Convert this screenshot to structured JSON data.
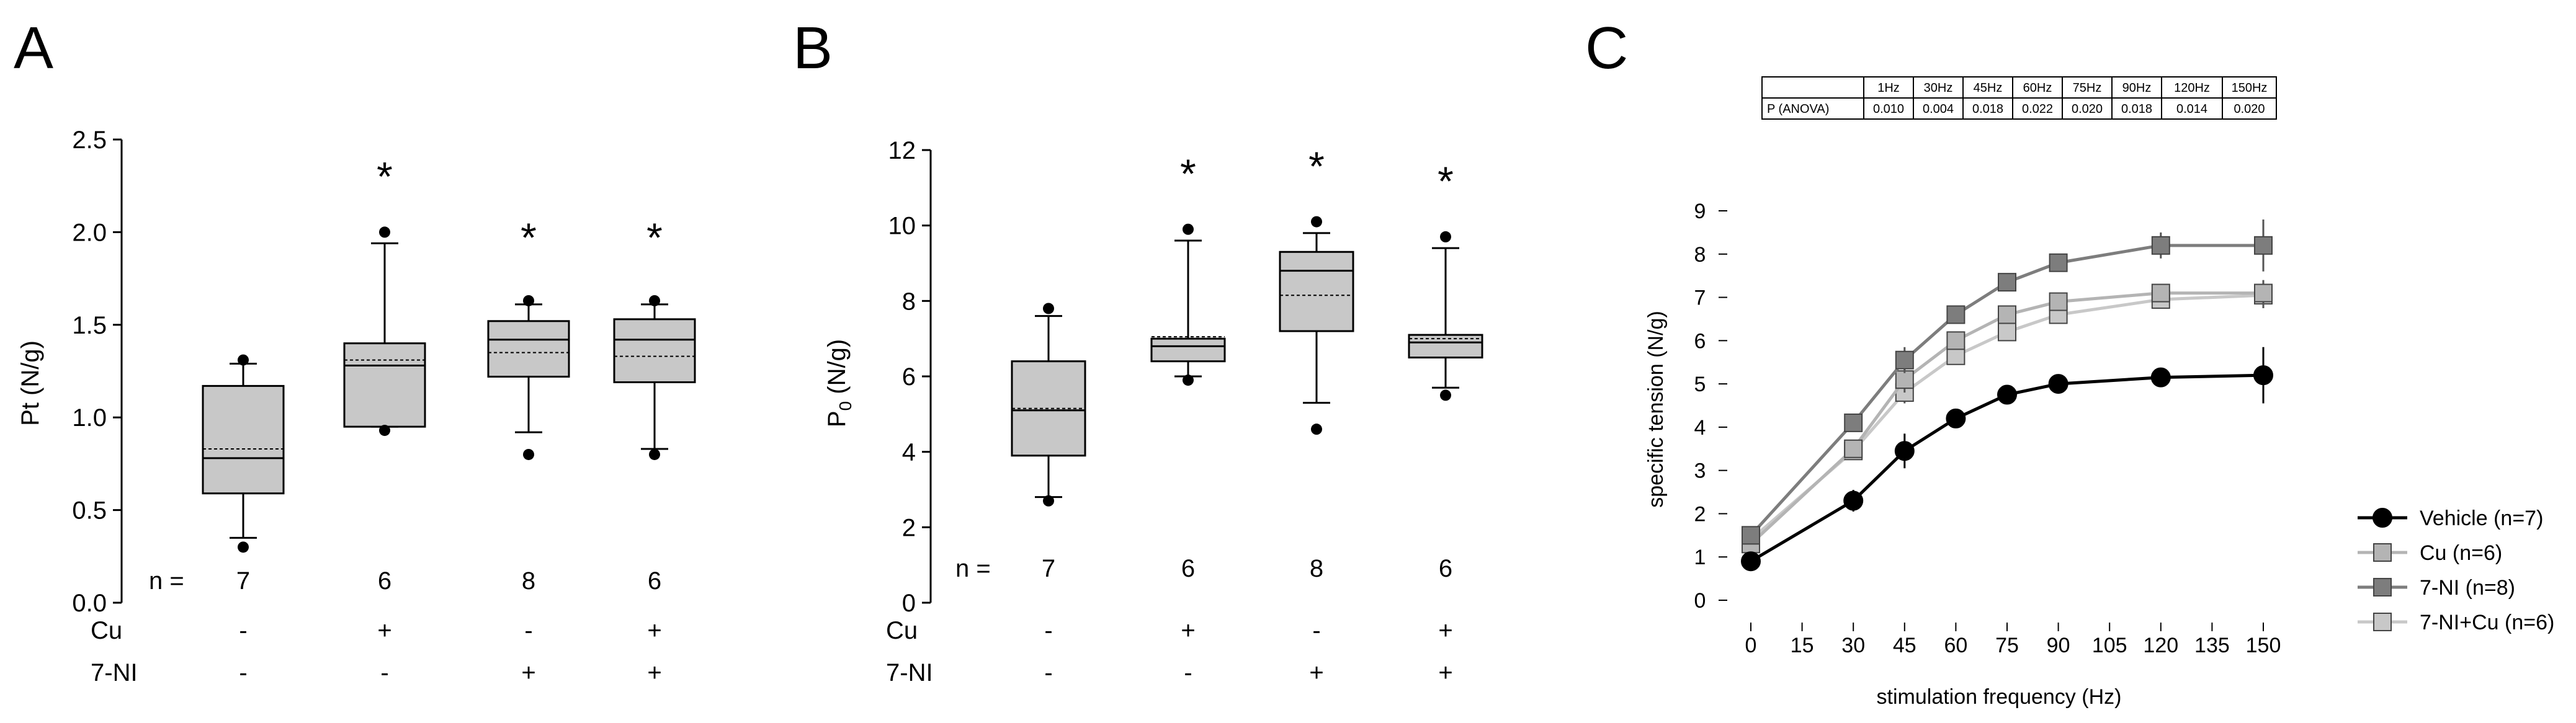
{
  "panels": {
    "a": {
      "letter": "A"
    },
    "b": {
      "letter": "B"
    },
    "c": {
      "letter": "C"
    }
  },
  "chart_data": [
    {
      "type": "box",
      "panel": "A",
      "ylabel": "Pt (N/g)",
      "ylim": [
        0,
        2.5
      ],
      "yticks": [
        "0.0",
        "0.5",
        "1.0",
        "1.5",
        "2.0",
        "2.5"
      ],
      "n_label": "n =",
      "cond_rows": [
        {
          "label": "Cu",
          "values": [
            "-",
            "+",
            "-",
            "+"
          ]
        },
        {
          "label": "7-NI",
          "values": [
            "-",
            "-",
            "+",
            "+"
          ]
        }
      ],
      "groups": [
        {
          "n": "7",
          "star": "",
          "whisker_low": 0.35,
          "q1": 0.59,
          "median": 0.78,
          "mean": 0.83,
          "q3": 1.17,
          "whisker_high": 1.29,
          "outliers": [
            0.3,
            1.31
          ]
        },
        {
          "n": "6",
          "star": "*",
          "whisker_low": 0.95,
          "q1": 0.95,
          "median": 1.28,
          "mean": 1.31,
          "q3": 1.4,
          "whisker_high": 1.94,
          "outliers": [
            0.93,
            2.0
          ]
        },
        {
          "n": "8",
          "star": "*",
          "whisker_low": 0.92,
          "q1": 1.22,
          "median": 1.42,
          "mean": 1.35,
          "q3": 1.52,
          "whisker_high": 1.61,
          "outliers": [
            0.8,
            1.63
          ]
        },
        {
          "n": "6",
          "star": "*",
          "whisker_low": 0.83,
          "q1": 1.19,
          "median": 1.42,
          "mean": 1.33,
          "q3": 1.53,
          "whisker_high": 1.61,
          "outliers": [
            0.8,
            1.63
          ]
        }
      ]
    },
    {
      "type": "box",
      "panel": "B",
      "ylabel": "P",
      "ylabel_sub": "0",
      "ylabel_unit": " (N/g)",
      "ylim": [
        0,
        12
      ],
      "yticks": [
        "0",
        "2",
        "4",
        "6",
        "8",
        "10",
        "12"
      ],
      "n_label": "n =",
      "cond_rows": [
        {
          "label": "Cu",
          "values": [
            "-",
            "+",
            "-",
            "+"
          ]
        },
        {
          "label": "7-NI",
          "values": [
            "-",
            "-",
            "+",
            "+"
          ]
        }
      ],
      "groups": [
        {
          "n": "7",
          "star": "",
          "whisker_low": 2.8,
          "q1": 3.9,
          "median": 5.1,
          "mean": 5.15,
          "q3": 6.4,
          "whisker_high": 7.6,
          "outliers": [
            2.7,
            7.8
          ]
        },
        {
          "n": "6",
          "star": "*",
          "whisker_low": 6.0,
          "q1": 6.4,
          "median": 6.8,
          "mean": 7.05,
          "q3": 7.0,
          "whisker_high": 9.6,
          "outliers": [
            5.9,
            9.9
          ]
        },
        {
          "n": "8",
          "star": "*",
          "whisker_low": 5.3,
          "q1": 7.2,
          "median": 8.8,
          "mean": 8.15,
          "q3": 9.3,
          "whisker_high": 9.8,
          "outliers": [
            4.6,
            10.1
          ]
        },
        {
          "n": "6",
          "star": "*",
          "whisker_low": 5.7,
          "q1": 6.5,
          "median": 6.9,
          "mean": 7.0,
          "q3": 7.1,
          "whisker_high": 9.4,
          "outliers": [
            5.5,
            9.7
          ]
        }
      ]
    },
    {
      "type": "line",
      "panel": "C",
      "xlabel": "stimulation frequency (Hz)",
      "ylabel": "specific tension (N/g)",
      "xlim": [
        0,
        150
      ],
      "ylim": [
        0,
        9
      ],
      "xticks": [
        0,
        15,
        30,
        45,
        60,
        75,
        90,
        105,
        120,
        135,
        150
      ],
      "yticks": [
        0,
        1,
        2,
        3,
        4,
        5,
        6,
        7,
        8,
        9
      ],
      "x": [
        0,
        30,
        45,
        60,
        75,
        90,
        120,
        150
      ],
      "series": [
        {
          "name": "Vehicle (n=7)",
          "color": "#000000",
          "marker": "circle",
          "values": [
            0.9,
            2.3,
            3.45,
            4.2,
            4.75,
            5.0,
            5.15,
            5.2
          ],
          "errors": [
            0.1,
            0.25,
            0.4,
            0.2,
            0.15,
            0.15,
            0.15,
            0.65
          ]
        },
        {
          "name": "Cu (n=6)",
          "color": "#b4b4b4",
          "marker": "square",
          "values": [
            1.3,
            3.5,
            5.1,
            6.0,
            6.6,
            6.9,
            7.1,
            7.1
          ],
          "errors": [
            0.1,
            0.2,
            0.3,
            0.2,
            0.2,
            0.2,
            0.2,
            0.3
          ]
        },
        {
          "name": "7-NI (n=8)",
          "color": "#7d7d7d",
          "marker": "square",
          "values": [
            1.5,
            4.1,
            5.55,
            6.6,
            7.35,
            7.8,
            8.2,
            8.2
          ],
          "errors": [
            0.1,
            0.2,
            0.3,
            0.2,
            0.2,
            0.2,
            0.3,
            0.6
          ]
        },
        {
          "name": "7-NI+Cu (n=6)",
          "color": "#c8c8c8",
          "marker": "square",
          "values": [
            1.4,
            3.45,
            4.8,
            5.65,
            6.2,
            6.6,
            6.95,
            7.05
          ],
          "errors": [
            0.1,
            0.2,
            0.25,
            0.2,
            0.2,
            0.2,
            0.2,
            0.3
          ]
        }
      ],
      "legend_position": "right",
      "anova_table": {
        "headers": [
          "",
          "1Hz",
          "30Hz",
          "45Hz",
          "60Hz",
          "75Hz",
          "90Hz",
          "120Hz",
          "150Hz"
        ],
        "row_label": "P (ANOVA)",
        "values": [
          "0.010",
          "0.004",
          "0.018",
          "0.022",
          "0.020",
          "0.018",
          "0.014",
          "0.020"
        ]
      }
    }
  ]
}
